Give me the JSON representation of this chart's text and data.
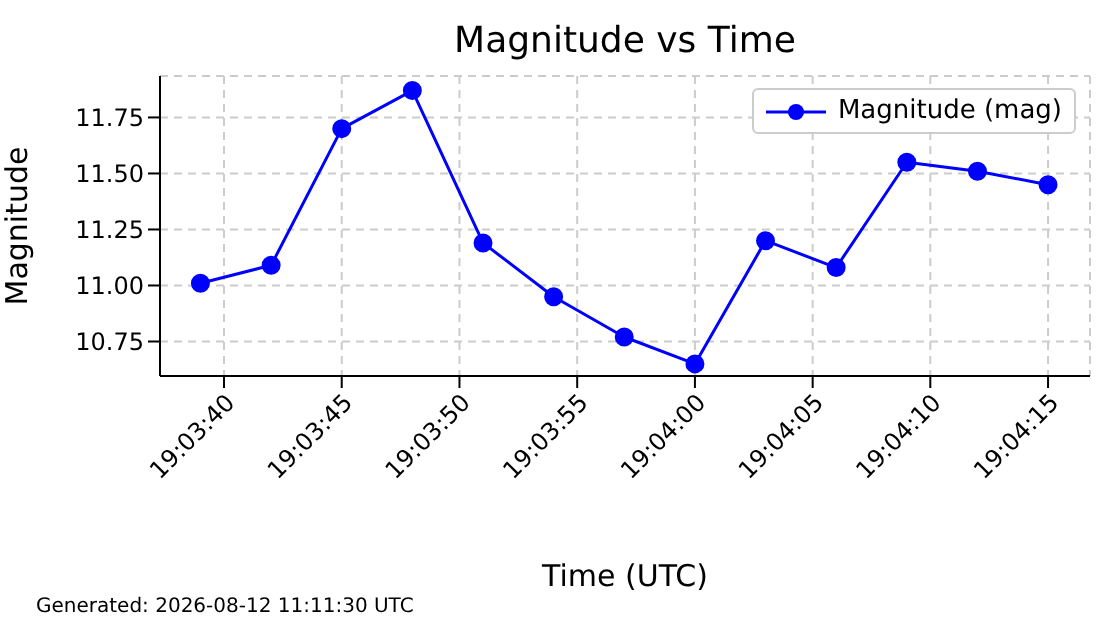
{
  "chart_data": {
    "type": "line",
    "title": "Magnitude vs Time",
    "xlabel": "Time (UTC)",
    "ylabel": "Magnitude",
    "annotations": [
      "Generated: 2026-08-12 11:11:30 UTC"
    ],
    "x": [
      19.060833,
      19.061667,
      19.0625,
      19.063333,
      19.064167,
      19.065,
      19.065833,
      19.066667,
      19.0675,
      19.068333,
      19.069167,
      19.07,
      19.070833
    ],
    "series": [
      {
        "name": "Magnitude (mag)",
        "color": "#0000ff",
        "values": [
          11.01,
          11.09,
          11.7,
          11.87,
          11.19,
          10.95,
          10.77,
          10.65,
          11.2,
          11.08,
          11.55,
          11.51,
          11.45
        ]
      }
    ],
    "xlim": [
      19.060356,
      19.071328
    ],
    "xticks": [
      {
        "value": 19.061111,
        "label": "19:03:40"
      },
      {
        "value": 19.0625,
        "label": "19:03:45"
      },
      {
        "value": 19.063889,
        "label": "19:03:50"
      },
      {
        "value": 19.065278,
        "label": "19:03:55"
      },
      {
        "value": 19.066667,
        "label": "19:04:00"
      },
      {
        "value": 19.068056,
        "label": "19:04:05"
      },
      {
        "value": 19.069444,
        "label": "19:04:10"
      },
      {
        "value": 19.070833,
        "label": "19:04:15"
      }
    ],
    "ylim": [
      10.596,
      11.935
    ],
    "yticks": [
      {
        "value": 10.75,
        "label": "10.75"
      },
      {
        "value": 11,
        "label": "11.00"
      },
      {
        "value": 11.25,
        "label": "11.25"
      },
      {
        "value": 11.5,
        "label": "11.50"
      },
      {
        "value": 11.75,
        "label": "11.75"
      }
    ],
    "grid": true,
    "legend": "top right",
    "marker": "circle",
    "line_style": "solid"
  }
}
